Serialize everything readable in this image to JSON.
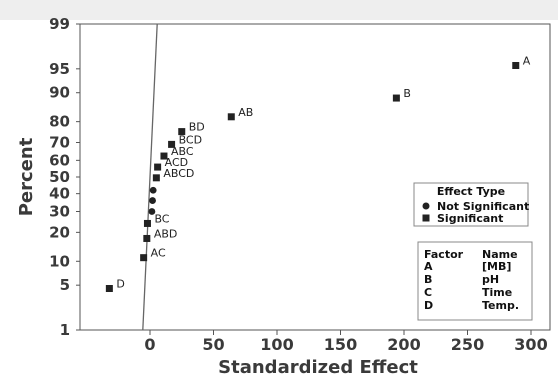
{
  "chart_data": {
    "type": "scatter",
    "title": "",
    "xlabel": "Standardized Effect",
    "ylabel": "Percent",
    "xlim": [
      -45,
      310
    ],
    "ylim": [
      1,
      99
    ],
    "y_scale": "normal-probability",
    "x_ticks": [
      "0",
      "50",
      "100",
      "150",
      "200",
      "250",
      "300"
    ],
    "y_ticks": [
      "1",
      "5",
      "10",
      "20",
      "30",
      "40",
      "50",
      "60",
      "70",
      "80",
      "90",
      "95",
      "99"
    ],
    "grid": false,
    "legend_position": "right",
    "series": [
      {
        "name": "Not Significant",
        "marker": "circle",
        "points": [
          {
            "x": 1.5,
            "y": 30
          },
          {
            "x": 2.0,
            "y": 36
          },
          {
            "x": 2.5,
            "y": 42
          }
        ]
      },
      {
        "name": "Significant",
        "marker": "square",
        "points": [
          {
            "label": "A",
            "x": 288,
            "y": 95.5
          },
          {
            "label": "B",
            "x": 194,
            "y": 88.5
          },
          {
            "label": "AB",
            "x": 64,
            "y": 82
          },
          {
            "label": "BD",
            "x": 25,
            "y": 75.5
          },
          {
            "label": "BCD",
            "x": 17,
            "y": 69
          },
          {
            "label": "ABC",
            "x": 11,
            "y": 62.5
          },
          {
            "label": "ACD",
            "x": 6,
            "y": 56
          },
          {
            "label": "ABCD",
            "x": 5,
            "y": 49.5
          },
          {
            "label": "BC",
            "x": -2,
            "y": 24
          },
          {
            "label": "ABD",
            "x": -2.5,
            "y": 17.5
          },
          {
            "label": "AC",
            "x": -5,
            "y": 11
          },
          {
            "label": "D",
            "x": -32,
            "y": 4.5
          }
        ]
      }
    ],
    "reference_line": {
      "x0": 0,
      "sigma": 2.2
    },
    "legend": {
      "title": "Effect Type",
      "entries": [
        "Not Significant",
        "Significant"
      ]
    },
    "factor_table": {
      "headers": [
        "Factor",
        "Name"
      ],
      "rows": [
        [
          "A",
          "[MB]"
        ],
        [
          "B",
          "pH"
        ],
        [
          "C",
          "Time"
        ],
        [
          "D",
          "Temp."
        ]
      ]
    },
    "colors": {
      "marker": "#222222",
      "reference_line": "#666666",
      "axis": "#555555",
      "text": "#3a3a3a"
    }
  }
}
